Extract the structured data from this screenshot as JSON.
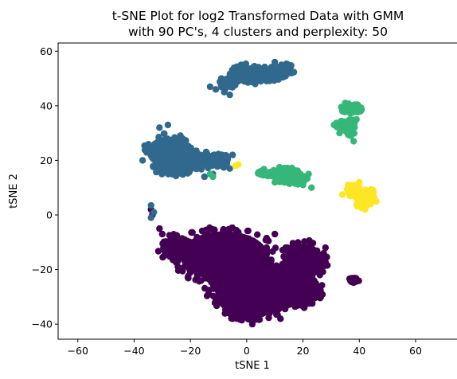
{
  "chart_data": {
    "type": "scatter",
    "title_line1": "t-SNE Plot for log2 Transformed Data with GMM",
    "title_line2": "with 90 PC's, 4 clusters and perplexity: 50",
    "xlabel": "tSNE 1",
    "ylabel": "tSNE 2",
    "xlim": [
      -67,
      75
    ],
    "ylim": [
      -45.5,
      63
    ],
    "xticks": [
      -60,
      -40,
      -20,
      0,
      20,
      40,
      60
    ],
    "yticks": [
      -40,
      -20,
      0,
      20,
      40,
      60
    ],
    "grid": false,
    "legend": "none",
    "colors": {
      "cluster_0": "#440154",
      "cluster_1": "#31688e",
      "cluster_2": "#35b779",
      "cluster_3": "#fde725"
    },
    "clusters": [
      {
        "id": "cluster_0",
        "color": "#440154",
        "regions": [
          {
            "cx": -8,
            "cy": -15,
            "rx": 19,
            "ry": 11
          },
          {
            "cx": 5,
            "cy": -27,
            "rx": 20,
            "ry": 11
          },
          {
            "cx": 20,
            "cy": -17,
            "rx": 9,
            "ry": 8
          },
          {
            "cx": 20,
            "cy": -28,
            "rx": 8,
            "ry": 5
          },
          {
            "cx": -25,
            "cy": -12,
            "rx": 7,
            "ry": 5
          },
          {
            "cx": 0,
            "cy": -35,
            "rx": 10,
            "ry": 4
          },
          {
            "cx": 38,
            "cy": -24,
            "rx": 2,
            "ry": 1
          }
        ],
        "points": [
          [
            -34,
            2
          ],
          [
            -33.5,
            0
          ],
          [
            -31,
            -5
          ],
          [
            -30,
            -7
          ],
          [
            -20,
            -20
          ],
          [
            28,
            -12
          ],
          [
            26,
            -22
          ],
          [
            -5,
            -38
          ],
          [
            2,
            -40
          ],
          [
            12,
            -38
          ],
          [
            -28,
            -10
          ],
          [
            10,
            -7
          ]
        ]
      },
      {
        "id": "cluster_1",
        "color": "#31688e",
        "regions": [
          {
            "cx": -28,
            "cy": 23,
            "rx": 9,
            "ry": 7
          },
          {
            "cx": -20,
            "cy": 20,
            "rx": 9,
            "ry": 4.5
          },
          {
            "cx": -26,
            "cy": 17,
            "rx": 7,
            "ry": 3
          },
          {
            "cx": -10,
            "cy": 20,
            "rx": 4,
            "ry": 3
          },
          {
            "cx": 0,
            "cy": 52,
            "rx": 6,
            "ry": 3.5
          },
          {
            "cx": 8,
            "cy": 52,
            "rx": 6,
            "ry": 3
          },
          {
            "cx": 13,
            "cy": 53,
            "rx": 4,
            "ry": 2.5
          },
          {
            "cx": -7,
            "cy": 48,
            "rx": 3,
            "ry": 2
          }
        ],
        "points": [
          [
            -34,
            3.5
          ],
          [
            -33,
            1
          ],
          [
            -34,
            -1
          ],
          [
            -13,
            47
          ],
          [
            -11,
            46
          ],
          [
            -9,
            50
          ],
          [
            -8,
            45
          ],
          [
            -6,
            44
          ],
          [
            -3,
            49
          ],
          [
            -31,
            32
          ],
          [
            -28,
            33
          ],
          [
            -36,
            25
          ],
          [
            -37,
            20
          ],
          [
            -12,
            15
          ],
          [
            -15,
            14
          ],
          [
            -7,
            19
          ],
          [
            -5,
            22
          ],
          [
            -6,
            17
          ],
          [
            14,
            55
          ],
          [
            16,
            52
          ],
          [
            10,
            56
          ],
          [
            -2,
            55
          ],
          [
            3,
            48
          ],
          [
            5,
            49
          ]
        ]
      },
      {
        "id": "cluster_2",
        "color": "#35b779",
        "regions": [
          {
            "cx": 12,
            "cy": 15.5,
            "rx": 8,
            "ry": 2
          },
          {
            "cx": 16,
            "cy": 13,
            "rx": 6,
            "ry": 2
          },
          {
            "cx": 36,
            "cy": 39,
            "rx": 2.5,
            "ry": 2
          },
          {
            "cx": 39,
            "cy": 39,
            "rx": 2,
            "ry": 1.5
          },
          {
            "cx": 34,
            "cy": 33,
            "rx": 2.5,
            "ry": 1.5
          },
          {
            "cx": 37,
            "cy": 32,
            "rx": 2,
            "ry": 3
          }
        ],
        "points": [
          [
            -12,
            14
          ],
          [
            -13,
            15
          ],
          [
            5,
            16
          ],
          [
            6,
            15
          ],
          [
            20,
            11
          ],
          [
            23,
            10
          ],
          [
            22,
            15
          ],
          [
            10,
            12
          ],
          [
            35,
            41
          ],
          [
            31,
            33
          ],
          [
            33,
            30
          ],
          [
            39,
            35
          ],
          [
            37,
            29
          ],
          [
            38,
            27
          ]
        ]
      },
      {
        "id": "cluster_3",
        "color": "#fde725",
        "regions": [
          {
            "cx": 38,
            "cy": 9,
            "rx": 2.5,
            "ry": 3
          },
          {
            "cx": 43,
            "cy": 7,
            "rx": 3,
            "ry": 2.5
          },
          {
            "cx": 41,
            "cy": 4,
            "rx": 2,
            "ry": 1.5
          }
        ],
        "points": [
          [
            -3,
            18.5
          ],
          [
            -4,
            18
          ],
          [
            36,
            11
          ],
          [
            34,
            7.5
          ],
          [
            45,
            9
          ],
          [
            46,
            5
          ],
          [
            42,
            2
          ],
          [
            40,
            12
          ],
          [
            37,
            7
          ],
          [
            44,
            4
          ]
        ]
      }
    ]
  }
}
